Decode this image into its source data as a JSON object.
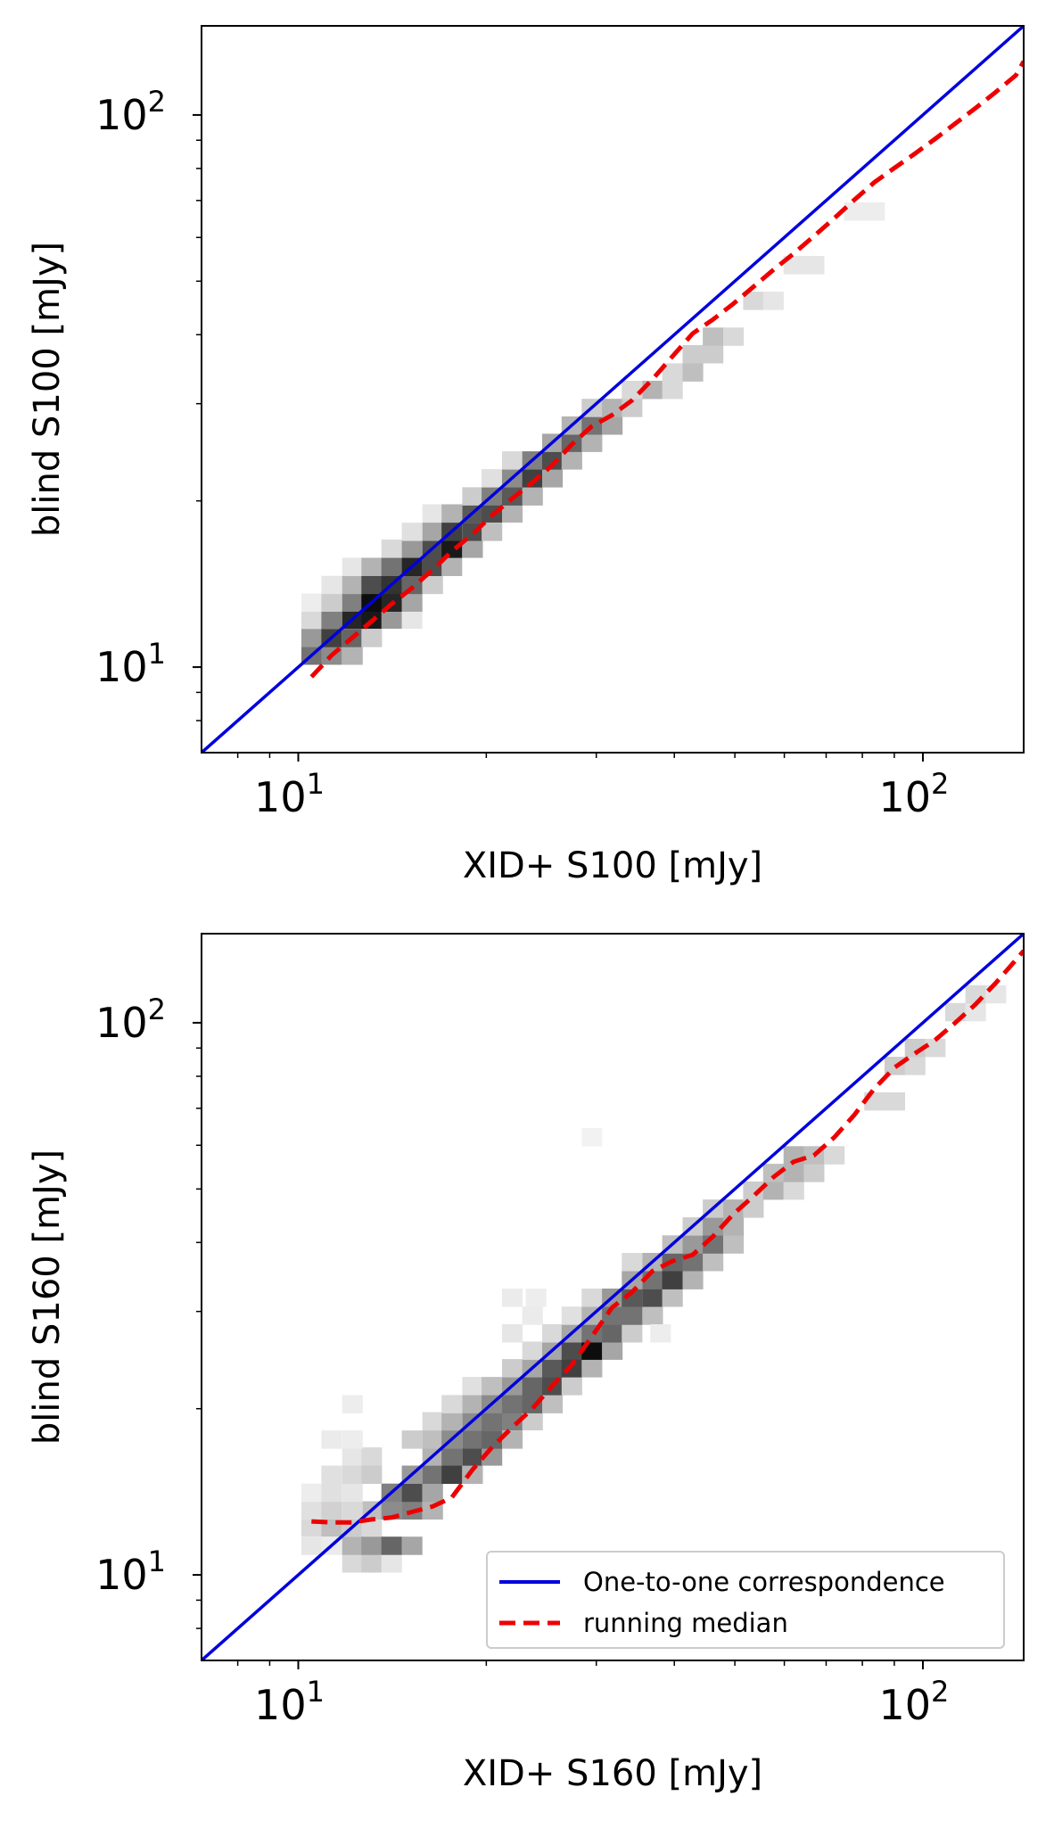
{
  "chart_data": [
    {
      "type": "heatmap",
      "panel": "top",
      "xlabel": "XID+ S100 [mJy]",
      "ylabel": "blind S100 [mJy]",
      "xscale": "log",
      "yscale": "log",
      "xlim": [
        7.0,
        145.0
      ],
      "ylim": [
        7.0,
        145.0
      ],
      "x_tick_labels": [
        {
          "base": "10",
          "exp": "1",
          "value": 10
        },
        {
          "base": "10",
          "exp": "2",
          "value": 100
        }
      ],
      "y_tick_labels": [
        {
          "base": "10",
          "exp": "1",
          "value": 10
        },
        {
          "base": "10",
          "exp": "2",
          "value": 100
        }
      ],
      "legend": false,
      "grid": false,
      "histogram_bins_log_x_y_density": [
        [
          10.5,
          10.5,
          0.55
        ],
        [
          11.3,
          10.5,
          0.45
        ],
        [
          12.2,
          10.5,
          0.3
        ],
        [
          10.5,
          11.3,
          0.4
        ],
        [
          11.3,
          11.3,
          0.75
        ],
        [
          12.2,
          11.3,
          0.6
        ],
        [
          13.1,
          11.3,
          0.2
        ],
        [
          10.5,
          12.2,
          0.15
        ],
        [
          11.3,
          12.2,
          0.5
        ],
        [
          12.2,
          12.2,
          0.85
        ],
        [
          13.1,
          12.2,
          0.9
        ],
        [
          14.1,
          12.2,
          0.4
        ],
        [
          15.2,
          12.2,
          0.1
        ],
        [
          10.5,
          13.1,
          0.07
        ],
        [
          11.3,
          13.1,
          0.2
        ],
        [
          12.2,
          13.1,
          0.5
        ],
        [
          13.1,
          13.1,
          0.95
        ],
        [
          14.1,
          13.1,
          0.85
        ],
        [
          15.2,
          13.1,
          0.35
        ],
        [
          11.3,
          14.1,
          0.1
        ],
        [
          12.2,
          14.1,
          0.3
        ],
        [
          13.1,
          14.1,
          0.7
        ],
        [
          14.1,
          14.1,
          0.8
        ],
        [
          15.2,
          14.1,
          0.6
        ],
        [
          16.4,
          14.1,
          0.2
        ],
        [
          12.2,
          15.2,
          0.1
        ],
        [
          13.1,
          15.2,
          0.3
        ],
        [
          14.1,
          15.2,
          0.55
        ],
        [
          15.2,
          15.2,
          0.85
        ],
        [
          16.4,
          15.2,
          0.7
        ],
        [
          17.6,
          15.2,
          0.3
        ],
        [
          14.1,
          16.4,
          0.15
        ],
        [
          15.2,
          16.4,
          0.4
        ],
        [
          16.4,
          16.4,
          0.7
        ],
        [
          17.6,
          16.4,
          0.9
        ],
        [
          19.0,
          16.4,
          0.35
        ],
        [
          15.2,
          17.6,
          0.12
        ],
        [
          16.4,
          17.6,
          0.35
        ],
        [
          17.6,
          17.6,
          0.75
        ],
        [
          19.0,
          17.6,
          0.7
        ],
        [
          20.4,
          17.6,
          0.25
        ],
        [
          16.4,
          19.0,
          0.1
        ],
        [
          17.6,
          19.0,
          0.3
        ],
        [
          19.0,
          19.0,
          0.65
        ],
        [
          20.4,
          19.0,
          0.7
        ],
        [
          22.0,
          19.0,
          0.3
        ],
        [
          19.0,
          20.4,
          0.2
        ],
        [
          20.4,
          20.4,
          0.5
        ],
        [
          22.0,
          20.4,
          0.65
        ],
        [
          23.7,
          20.4,
          0.3
        ],
        [
          20.4,
          22.0,
          0.12
        ],
        [
          22.0,
          22.0,
          0.45
        ],
        [
          23.7,
          22.0,
          0.75
        ],
        [
          25.5,
          22.0,
          0.35
        ],
        [
          22.0,
          23.7,
          0.15
        ],
        [
          23.7,
          23.7,
          0.5
        ],
        [
          25.5,
          23.7,
          0.7
        ],
        [
          27.4,
          23.7,
          0.3
        ],
        [
          25.5,
          25.5,
          0.35
        ],
        [
          27.4,
          25.5,
          0.6
        ],
        [
          29.5,
          25.5,
          0.3
        ],
        [
          27.4,
          27.4,
          0.3
        ],
        [
          29.5,
          27.4,
          0.55
        ],
        [
          31.8,
          27.4,
          0.35
        ],
        [
          29.5,
          29.5,
          0.2
        ],
        [
          31.8,
          29.5,
          0.3
        ],
        [
          34.2,
          29.5,
          0.2
        ],
        [
          34.2,
          31.8,
          0.15
        ],
        [
          36.9,
          31.8,
          0.3
        ],
        [
          39.7,
          31.8,
          0.15
        ],
        [
          39.7,
          34.2,
          0.15
        ],
        [
          42.8,
          34.2,
          0.25
        ],
        [
          42.8,
          36.9,
          0.2
        ],
        [
          46.1,
          36.9,
          0.2
        ],
        [
          46.1,
          39.7,
          0.25
        ],
        [
          49.7,
          39.7,
          0.15
        ],
        [
          53.5,
          46.1,
          0.15
        ],
        [
          57.6,
          46.1,
          0.1
        ],
        [
          62.1,
          53.5,
          0.1
        ],
        [
          66.9,
          53.5,
          0.1
        ],
        [
          77.6,
          66.9,
          0.07
        ],
        [
          83.6,
          66.9,
          0.07
        ]
      ],
      "series": [
        {
          "name": "One-to-one correspondence",
          "style": "solid",
          "color": "#0000dd",
          "x": [
            7.0,
            145.0
          ],
          "y": [
            7.0,
            145.0
          ]
        },
        {
          "name": "running median",
          "style": "dashed",
          "color": "#ee0000",
          "x": [
            10.5,
            11.3,
            12.2,
            13.1,
            14.1,
            15.2,
            16.4,
            17.6,
            19.0,
            20.4,
            22.0,
            23.7,
            25.5,
            27.4,
            29.5,
            31.8,
            34.2,
            36.9,
            39.7,
            42.8,
            46.1,
            49.7,
            53.5,
            57.6,
            62.1,
            66.9,
            72.1,
            77.6,
            83.6,
            90.1,
            97.1,
            104.6,
            112.7,
            121.4,
            130.8,
            140.9,
            145.0
          ],
          "y": [
            9.6,
            10.5,
            11.3,
            12.1,
            13.0,
            13.9,
            15.0,
            16.2,
            17.4,
            18.8,
            20.2,
            21.6,
            23.2,
            25.3,
            27.3,
            28.6,
            30.4,
            33.2,
            36.5,
            40.2,
            42.6,
            45.5,
            48.8,
            52.4,
            56.1,
            60.3,
            65.0,
            70.1,
            75.5,
            80.2,
            85.1,
            90.5,
            96.5,
            102.9,
            110.0,
            118.0,
            125.0
          ]
        }
      ]
    },
    {
      "type": "heatmap",
      "panel": "bottom",
      "xlabel": "XID+ S160 [mJy]",
      "ylabel": "blind S160 [mJy]",
      "xscale": "log",
      "yscale": "log",
      "xlim": [
        7.0,
        145.0
      ],
      "ylim": [
        7.0,
        145.0
      ],
      "x_tick_labels": [
        {
          "base": "10",
          "exp": "1",
          "value": 10
        },
        {
          "base": "10",
          "exp": "2",
          "value": 100
        }
      ],
      "y_tick_labels": [
        {
          "base": "10",
          "exp": "1",
          "value": 10
        },
        {
          "base": "10",
          "exp": "2",
          "value": 100
        }
      ],
      "legend": true,
      "legend_position": "lower-right",
      "grid": false,
      "histogram_bins_log_x_y_density": [
        [
          10.5,
          11.3,
          0.1
        ],
        [
          11.3,
          11.3,
          0.08
        ],
        [
          10.5,
          12.2,
          0.15
        ],
        [
          11.3,
          12.2,
          0.25
        ],
        [
          12.2,
          12.2,
          0.2
        ],
        [
          13.1,
          12.2,
          0.15
        ],
        [
          12.2,
          10.5,
          0.15
        ],
        [
          13.1,
          10.5,
          0.2
        ],
        [
          14.1,
          10.5,
          0.1
        ],
        [
          12.2,
          11.3,
          0.3
        ],
        [
          13.1,
          11.3,
          0.4
        ],
        [
          14.1,
          11.3,
          0.6
        ],
        [
          15.2,
          11.3,
          0.35
        ],
        [
          13.1,
          13.1,
          0.25
        ],
        [
          14.1,
          13.1,
          0.45
        ],
        [
          15.2,
          13.1,
          0.5
        ],
        [
          16.4,
          13.1,
          0.3
        ],
        [
          14.1,
          14.1,
          0.5
        ],
        [
          15.2,
          14.1,
          0.7
        ],
        [
          16.4,
          14.1,
          0.35
        ],
        [
          10.5,
          13.1,
          0.12
        ],
        [
          11.3,
          13.1,
          0.18
        ],
        [
          12.2,
          13.1,
          0.15
        ],
        [
          10.5,
          14.1,
          0.07
        ],
        [
          11.3,
          14.1,
          0.12
        ],
        [
          12.2,
          14.1,
          0.1
        ],
        [
          11.3,
          15.2,
          0.12
        ],
        [
          12.2,
          15.2,
          0.15
        ],
        [
          13.1,
          15.2,
          0.2
        ],
        [
          12.2,
          16.4,
          0.1
        ],
        [
          13.1,
          16.4,
          0.15
        ],
        [
          11.3,
          17.6,
          0.08
        ],
        [
          12.2,
          17.6,
          0.07
        ],
        [
          12.2,
          20.4,
          0.07
        ],
        [
          15.2,
          15.2,
          0.4
        ],
        [
          16.4,
          15.2,
          0.55
        ],
        [
          17.6,
          15.2,
          0.75
        ],
        [
          19.0,
          15.2,
          0.3
        ],
        [
          16.4,
          16.4,
          0.3
        ],
        [
          17.6,
          16.4,
          0.55
        ],
        [
          19.0,
          16.4,
          0.7
        ],
        [
          20.4,
          16.4,
          0.4
        ],
        [
          15.2,
          17.6,
          0.2
        ],
        [
          16.4,
          17.6,
          0.25
        ],
        [
          17.6,
          17.6,
          0.45
        ],
        [
          19.0,
          17.6,
          0.55
        ],
        [
          20.4,
          17.6,
          0.6
        ],
        [
          22.0,
          17.6,
          0.3
        ],
        [
          16.4,
          19.0,
          0.15
        ],
        [
          17.6,
          19.0,
          0.3
        ],
        [
          19.0,
          19.0,
          0.45
        ],
        [
          20.4,
          19.0,
          0.55
        ],
        [
          22.0,
          19.0,
          0.5
        ],
        [
          23.7,
          19.0,
          0.2
        ],
        [
          17.6,
          20.4,
          0.15
        ],
        [
          19.0,
          20.4,
          0.3
        ],
        [
          20.4,
          20.4,
          0.45
        ],
        [
          22.0,
          20.4,
          0.55
        ],
        [
          23.7,
          20.4,
          0.6
        ],
        [
          25.5,
          20.4,
          0.25
        ],
        [
          19.0,
          22.0,
          0.12
        ],
        [
          20.4,
          22.0,
          0.25
        ],
        [
          22.0,
          22.0,
          0.4
        ],
        [
          23.7,
          22.0,
          0.6
        ],
        [
          25.5,
          22.0,
          0.7
        ],
        [
          27.4,
          22.0,
          0.2
        ],
        [
          22.0,
          23.7,
          0.2
        ],
        [
          23.7,
          23.7,
          0.35
        ],
        [
          25.5,
          23.7,
          0.65
        ],
        [
          27.4,
          23.7,
          0.75
        ],
        [
          29.5,
          23.7,
          0.3
        ],
        [
          23.7,
          25.5,
          0.15
        ],
        [
          25.5,
          25.5,
          0.35
        ],
        [
          27.4,
          25.5,
          0.7
        ],
        [
          29.5,
          25.5,
          0.95
        ],
        [
          31.8,
          25.5,
          0.35
        ],
        [
          22.0,
          27.4,
          0.1
        ],
        [
          25.5,
          27.4,
          0.15
        ],
        [
          27.4,
          27.4,
          0.35
        ],
        [
          29.5,
          27.4,
          0.55
        ],
        [
          31.8,
          27.4,
          0.6
        ],
        [
          34.2,
          27.4,
          0.2
        ],
        [
          23.7,
          29.5,
          0.08
        ],
        [
          27.4,
          29.5,
          0.12
        ],
        [
          29.5,
          29.5,
          0.3
        ],
        [
          31.8,
          29.5,
          0.55
        ],
        [
          34.2,
          29.5,
          0.55
        ],
        [
          36.9,
          29.5,
          0.25
        ],
        [
          22.0,
          31.8,
          0.08
        ],
        [
          24.0,
          31.8,
          0.07
        ],
        [
          29.5,
          31.8,
          0.15
        ],
        [
          31.8,
          31.8,
          0.4
        ],
        [
          34.2,
          31.8,
          0.65
        ],
        [
          36.9,
          31.8,
          0.7
        ],
        [
          39.7,
          31.8,
          0.25
        ],
        [
          34.2,
          34.2,
          0.35
        ],
        [
          36.9,
          34.2,
          0.55
        ],
        [
          39.7,
          34.2,
          0.75
        ],
        [
          42.8,
          34.2,
          0.3
        ],
        [
          34.2,
          36.9,
          0.15
        ],
        [
          36.9,
          36.9,
          0.3
        ],
        [
          39.7,
          36.9,
          0.6
        ],
        [
          42.8,
          36.9,
          0.55
        ],
        [
          46.1,
          36.9,
          0.25
        ],
        [
          39.7,
          39.7,
          0.25
        ],
        [
          42.8,
          39.7,
          0.4
        ],
        [
          46.1,
          39.7,
          0.55
        ],
        [
          49.7,
          39.7,
          0.25
        ],
        [
          42.8,
          42.8,
          0.2
        ],
        [
          46.1,
          42.8,
          0.4
        ],
        [
          49.7,
          42.8,
          0.3
        ],
        [
          46.1,
          46.1,
          0.2
        ],
        [
          49.7,
          46.1,
          0.3
        ],
        [
          53.5,
          46.1,
          0.2
        ],
        [
          53.5,
          49.7,
          0.2
        ],
        [
          57.6,
          49.7,
          0.3
        ],
        [
          62.1,
          49.7,
          0.15
        ],
        [
          57.6,
          53.5,
          0.25
        ],
        [
          62.1,
          53.5,
          0.3
        ],
        [
          66.9,
          53.5,
          0.2
        ],
        [
          62.1,
          57.6,
          0.3
        ],
        [
          66.9,
          57.6,
          0.25
        ],
        [
          72.1,
          57.6,
          0.15
        ],
        [
          38.0,
          27.4,
          0.07
        ],
        [
          29.5,
          62.1,
          0.05
        ],
        [
          83.6,
          72.1,
          0.15
        ],
        [
          90.1,
          72.1,
          0.15
        ],
        [
          90.1,
          83.6,
          0.2
        ],
        [
          97.1,
          83.6,
          0.15
        ],
        [
          97.1,
          90.1,
          0.2
        ],
        [
          104.6,
          90.1,
          0.15
        ],
        [
          112.7,
          104.6,
          0.15
        ],
        [
          121.4,
          104.6,
          0.1
        ],
        [
          121.4,
          112.7,
          0.15
        ],
        [
          130.8,
          112.7,
          0.1
        ]
      ],
      "series": [
        {
          "name": "One-to-one correspondence",
          "style": "solid",
          "color": "#0000dd",
          "x": [
            7.0,
            145.0
          ],
          "y": [
            7.0,
            145.0
          ]
        },
        {
          "name": "running median",
          "style": "dashed",
          "color": "#ee0000",
          "x": [
            10.5,
            11.3,
            12.2,
            13.1,
            14.1,
            15.2,
            16.4,
            17.6,
            19.0,
            20.4,
            22.0,
            23.7,
            25.5,
            27.4,
            29.5,
            31.8,
            34.2,
            36.9,
            39.7,
            42.8,
            46.1,
            49.7,
            53.5,
            57.6,
            62.1,
            66.9,
            72.1,
            77.6,
            83.6,
            90.1,
            97.1,
            104.6,
            112.7,
            121.4,
            130.8,
            140.9,
            145.0
          ],
          "y": [
            12.5,
            12.45,
            12.45,
            12.6,
            12.7,
            13.0,
            13.3,
            13.8,
            15.5,
            17.0,
            18.5,
            20.0,
            22.0,
            24.0,
            27.0,
            30.5,
            32.5,
            35.5,
            37.0,
            38.0,
            41.0,
            45.0,
            48.5,
            52.5,
            56.0,
            57.5,
            62.0,
            68.0,
            76.0,
            83.0,
            88.0,
            93.0,
            100.0,
            108.0,
            118.0,
            130.0,
            135.0
          ]
        }
      ]
    }
  ]
}
